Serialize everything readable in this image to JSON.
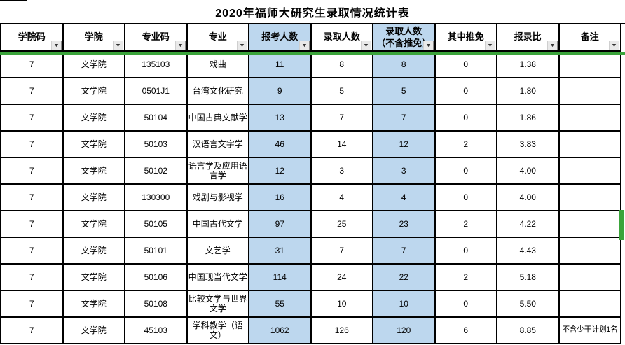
{
  "title": "2020年福师大研究生录取情况统计表",
  "icons": {
    "filter_arrow": "▼"
  },
  "colors": {
    "header_highlight": "#BDD7EE",
    "selection_green": "#3BA43B",
    "grid_line": "#000000"
  },
  "table": {
    "columns": [
      {
        "key": "college-code",
        "label": "学院码",
        "highlight": false
      },
      {
        "key": "college",
        "label": "学院",
        "highlight": false
      },
      {
        "key": "major-code",
        "label": "专业码",
        "highlight": false
      },
      {
        "key": "major",
        "label": "专业",
        "highlight": false
      },
      {
        "key": "applicants",
        "label": "报考人数",
        "highlight": true
      },
      {
        "key": "admitted",
        "label": "录取人数",
        "highlight": false
      },
      {
        "key": "admitted-excl-exempt",
        "label": "录取人数\n（不含推免）",
        "highlight": true
      },
      {
        "key": "exempt-count",
        "label": "其中推免",
        "highlight": false
      },
      {
        "key": "ratio",
        "label": "报录比",
        "highlight": false
      },
      {
        "key": "remark",
        "label": "备注",
        "highlight": false
      }
    ],
    "rows": [
      [
        "7",
        "文学院",
        "135103",
        "戏曲",
        "11",
        "8",
        "8",
        "0",
        "1.38",
        ""
      ],
      [
        "7",
        "文学院",
        "0501J1",
        "台湾文化研究",
        "9",
        "5",
        "5",
        "0",
        "1.80",
        ""
      ],
      [
        "7",
        "文学院",
        "50104",
        "中国古典文献学",
        "13",
        "7",
        "7",
        "0",
        "1.86",
        ""
      ],
      [
        "7",
        "文学院",
        "50103",
        "汉语言文字学",
        "46",
        "14",
        "12",
        "2",
        "3.83",
        ""
      ],
      [
        "7",
        "文学院",
        "50102",
        "语言学及应用语言学",
        "12",
        "3",
        "3",
        "0",
        "4.00",
        ""
      ],
      [
        "7",
        "文学院",
        "130300",
        "戏剧与影视学",
        "16",
        "4",
        "4",
        "0",
        "4.00",
        ""
      ],
      [
        "7",
        "文学院",
        "50105",
        "中国古代文学",
        "97",
        "25",
        "23",
        "2",
        "4.22",
        ""
      ],
      [
        "7",
        "文学院",
        "50101",
        "文艺学",
        "31",
        "7",
        "7",
        "0",
        "4.43",
        ""
      ],
      [
        "7",
        "文学院",
        "50106",
        "中国现当代文学",
        "114",
        "24",
        "22",
        "2",
        "5.18",
        ""
      ],
      [
        "7",
        "文学院",
        "50108",
        "比较文学与世界文学",
        "55",
        "10",
        "10",
        "0",
        "5.50",
        ""
      ],
      [
        "7",
        "文学院",
        "45103",
        "学科教学（语文）",
        "1062",
        "126",
        "120",
        "6",
        "8.85",
        "不含少干计划1名"
      ]
    ]
  }
}
